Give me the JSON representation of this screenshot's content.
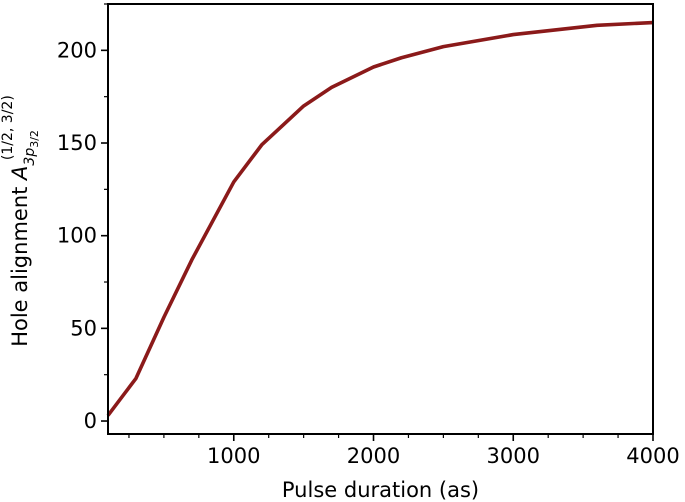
{
  "chart_data": {
    "type": "line",
    "xlabel": "Pulse duration (as)",
    "ylabel": {
      "prefix": "Hole alignment ",
      "symbol": "A",
      "superscript": "(1/2, 3/2)",
      "subscript_main": "3p",
      "subscript_sub": "3/2"
    },
    "xlim": [
      100,
      4000
    ],
    "ylim": [
      -7,
      225
    ],
    "xticks": [
      1000,
      2000,
      3000,
      4000
    ],
    "xtick_labels": [
      "1000",
      "2000",
      "3000",
      "4000"
    ],
    "xminor_ticks": [
      250,
      500,
      750,
      1250,
      1500,
      1750,
      2250,
      2500,
      2750,
      3250,
      3500,
      3750
    ],
    "yticks": [
      0,
      50,
      100,
      150,
      200
    ],
    "ytick_labels": [
      "0",
      "50",
      "100",
      "150",
      "200"
    ],
    "yminor_ticks": [
      25,
      75,
      125,
      175,
      225
    ],
    "grid": false,
    "series": [
      {
        "color": "#8b1a1a",
        "x": [
          100,
          300,
          500,
          700,
          1000,
          1200,
          1500,
          1700,
          2000,
          2200,
          2500,
          3000,
          3600,
          4000
        ],
        "y": [
          3,
          23,
          56,
          87,
          129,
          149,
          170,
          180,
          191,
          196,
          202,
          208.5,
          213.5,
          215
        ]
      }
    ]
  }
}
